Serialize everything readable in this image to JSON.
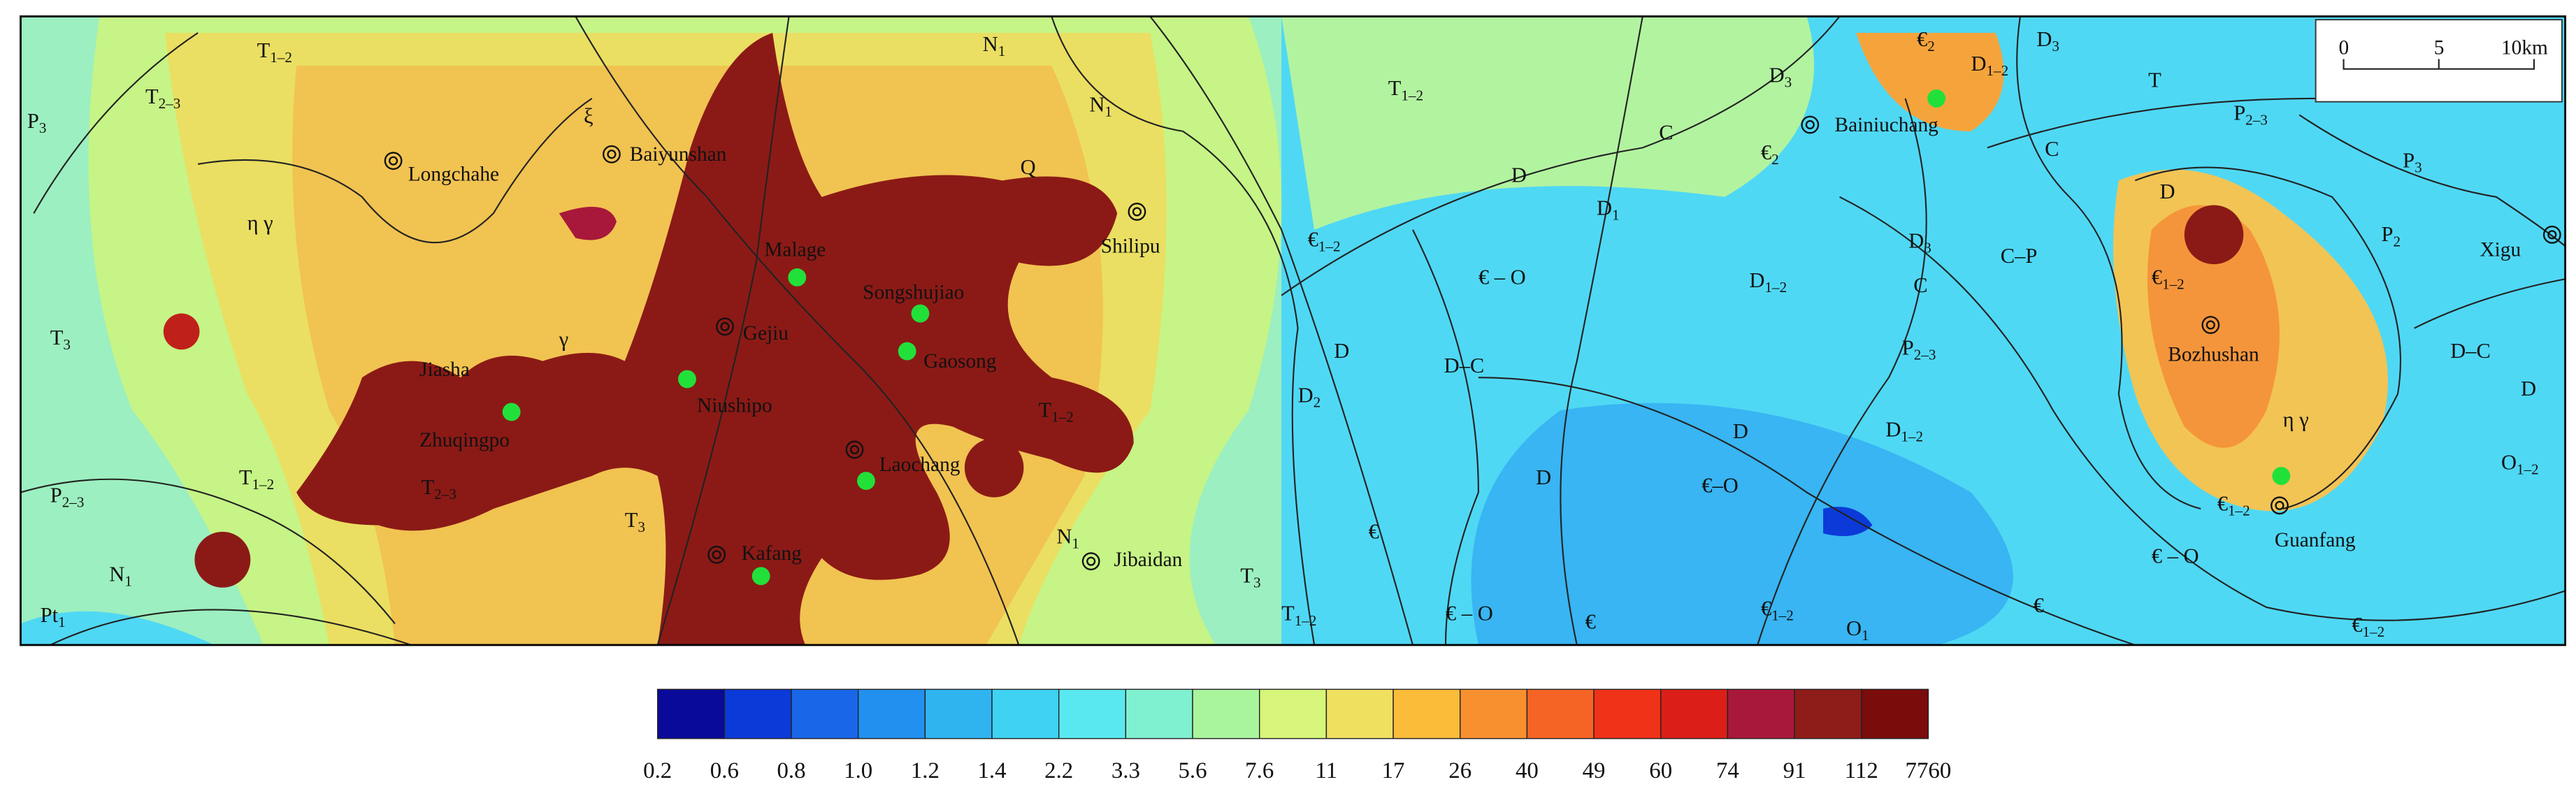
{
  "map": {
    "places": [
      "Longchahe",
      "Baiyunshan",
      "Malage",
      "Songshujiao",
      "Gejiu",
      "Gaosong",
      "Niushipo",
      "Jiasha",
      "Zhuqingpo",
      "Laochang",
      "Kafang",
      "Jibaidan",
      "Shilipu",
      "Bainiuchang",
      "Bozhushan",
      "Xigu",
      "Guanfang"
    ],
    "units": [
      {
        "symbol": "T",
        "sub": "1–2"
      },
      {
        "symbol": "T",
        "sub": "2–3"
      },
      {
        "symbol": "P",
        "sub": "3"
      },
      {
        "symbol": "ξ"
      },
      {
        "symbol": "N",
        "sub": "1"
      },
      {
        "symbol": "N",
        "sub": "1"
      },
      {
        "symbol": "Q"
      },
      {
        "symbol": "T",
        "sub": "1–2"
      },
      {
        "symbol": "D",
        "sub": "3"
      },
      {
        "symbol": "C"
      },
      {
        "symbol": "€",
        "sub": "2"
      },
      {
        "symbol": "€",
        "sub": "2"
      },
      {
        "symbol": "D",
        "sub": "1–2"
      },
      {
        "symbol": "D",
        "sub": "3"
      },
      {
        "symbol": "T"
      },
      {
        "symbol": "P",
        "sub": "2–3"
      },
      {
        "symbol": "C"
      },
      {
        "symbol": "P",
        "sub": "3"
      },
      {
        "symbol": "D"
      },
      {
        "symbol": "D",
        "sub": "1"
      },
      {
        "symbol": "€",
        "sub": "1–2"
      },
      {
        "symbol": "€ – O"
      },
      {
        "symbol": "D",
        "sub": "1–2"
      },
      {
        "symbol": "D",
        "sub": "3"
      },
      {
        "symbol": "C"
      },
      {
        "symbol": "C–P"
      },
      {
        "symbol": "D"
      },
      {
        "symbol": "€",
        "sub": "1–2"
      },
      {
        "symbol": "P",
        "sub": "2"
      },
      {
        "symbol": "T",
        "sub": "3"
      },
      {
        "symbol": "η γ"
      },
      {
        "symbol": "γ"
      },
      {
        "symbol": "D"
      },
      {
        "symbol": "D–C"
      },
      {
        "symbol": "D",
        "sub": "2"
      },
      {
        "symbol": "P",
        "sub": "2–3"
      },
      {
        "symbol": "D–C"
      },
      {
        "symbol": "D"
      },
      {
        "symbol": "T",
        "sub": "1–2"
      },
      {
        "symbol": "D"
      },
      {
        "symbol": "D",
        "sub": "1–2"
      },
      {
        "symbol": "η γ"
      },
      {
        "symbol": "O",
        "sub": "1–2"
      },
      {
        "symbol": "P",
        "sub": "2–3"
      },
      {
        "symbol": "T",
        "sub": "1–2"
      },
      {
        "symbol": "T",
        "sub": "2–3"
      },
      {
        "symbol": "T",
        "sub": "3"
      },
      {
        "symbol": "D"
      },
      {
        "symbol": "€–O"
      },
      {
        "symbol": "€"
      },
      {
        "symbol": "N",
        "sub": "1"
      },
      {
        "symbol": "€ – O"
      },
      {
        "symbol": "€",
        "sub": "1–2"
      },
      {
        "symbol": "T",
        "sub": "3"
      },
      {
        "symbol": "T",
        "sub": "1–2"
      },
      {
        "symbol": "€ – O"
      },
      {
        "symbol": "€"
      },
      {
        "symbol": "€",
        "sub": "1–2"
      },
      {
        "symbol": "O",
        "sub": "1"
      },
      {
        "symbol": "€"
      },
      {
        "symbol": "€",
        "sub": "1–2"
      },
      {
        "symbol": "N",
        "sub": "1"
      },
      {
        "symbol": "Pt",
        "sub": "1"
      }
    ],
    "scale": {
      "labels": [
        "0",
        "5",
        "10km"
      ]
    },
    "legend": {
      "labels": [
        "0.2",
        "0.6",
        "0.8",
        "1.0",
        "1.2",
        "1.4",
        "2.2",
        "3.3",
        "5.6",
        "7.6",
        "11",
        "17",
        "26",
        "40",
        "49",
        "60",
        "74",
        "91",
        "112",
        "7760"
      ],
      "colors": [
        "#0a0a9a",
        "#0c3ad8",
        "#1a66e8",
        "#2290ee",
        "#30b4f0",
        "#3fd2f2",
        "#5ae8f0",
        "#7ff0d0",
        "#a8f59c",
        "#d6f57a",
        "#f0e060",
        "#fbbc3a",
        "#f89030",
        "#f56424",
        "#ef3218",
        "#dc1e18",
        "#a8183a",
        "#8e1c18",
        "#7a0c0c"
      ]
    }
  }
}
